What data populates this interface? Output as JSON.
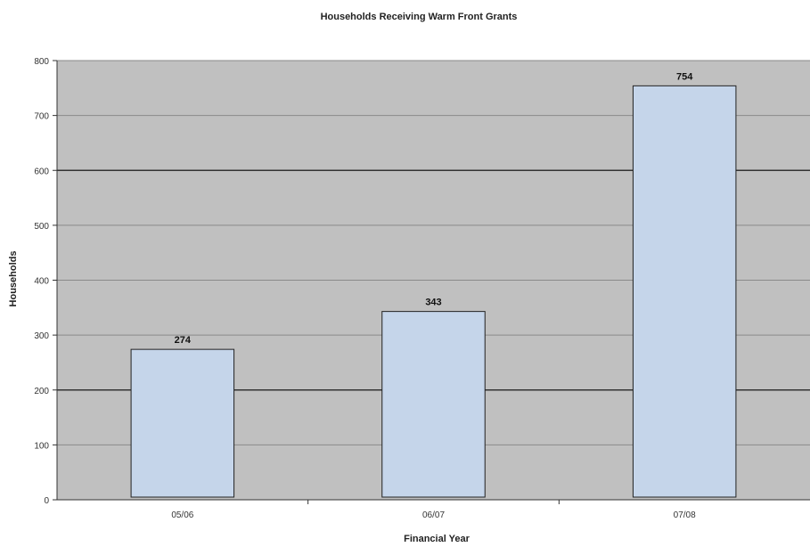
{
  "chart_data": {
    "type": "bar",
    "title": "Households Receiving Warm Front Grants",
    "xlabel": "Financial Year",
    "ylabel": "Households",
    "categories": [
      "05/06",
      "06/07",
      "07/08"
    ],
    "values": [
      274,
      343,
      754
    ],
    "data_labels": [
      "274",
      "343",
      "754"
    ],
    "ylim": [
      0,
      800
    ],
    "yticks": [
      0,
      100,
      200,
      300,
      400,
      500,
      600,
      700,
      800
    ],
    "grid": true,
    "legend": "none",
    "colors": {
      "plot_background": "#c0c0c0",
      "bar_fill": "#c5d5ea",
      "bar_stroke": "#222222",
      "gridline": "#8a8a8a",
      "gridline_major": "#333333"
    }
  }
}
